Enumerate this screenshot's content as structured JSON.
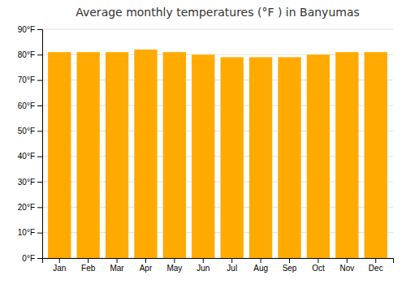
{
  "chart_data": {
    "type": "bar",
    "title": "Average monthly temperatures (°F ) in Banyumas",
    "categories": [
      "Jan",
      "Feb",
      "Mar",
      "Apr",
      "May",
      "Jun",
      "Jul",
      "Aug",
      "Sep",
      "Oct",
      "Nov",
      "Dec"
    ],
    "values": [
      81,
      81,
      81,
      82,
      81,
      80,
      79,
      79,
      79,
      80,
      81,
      81
    ],
    "color": "#FFAA00",
    "ylim": [
      0,
      90
    ],
    "yticks": [
      {
        "value": 0,
        "label": "0°F"
      },
      {
        "value": 10,
        "label": "10°F"
      },
      {
        "value": 20,
        "label": "20°F"
      },
      {
        "value": 30,
        "label": "30°F"
      },
      {
        "value": 40,
        "label": "40°F"
      },
      {
        "value": 50,
        "label": "50°F"
      },
      {
        "value": 60,
        "label": "60°F"
      },
      {
        "value": 70,
        "label": "70°F"
      },
      {
        "value": 80,
        "label": "80°F"
      },
      {
        "value": 90,
        "label": "90°F"
      }
    ],
    "grid": true
  }
}
